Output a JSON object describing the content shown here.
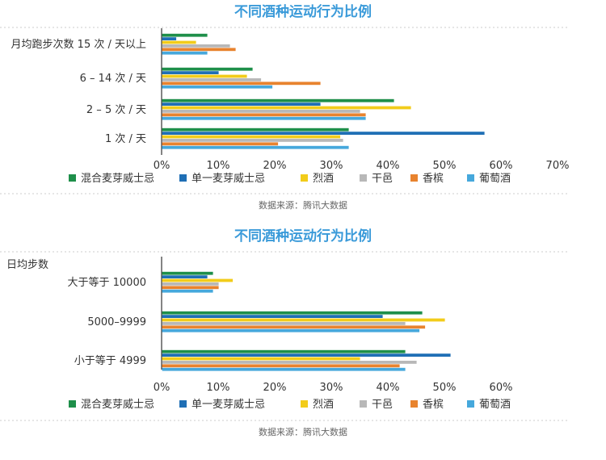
{
  "colors": [
    "#1e8f4a",
    "#1f6fb5",
    "#f2cc1a",
    "#b8b8b8",
    "#e8832e",
    "#46a8dc"
  ],
  "chart_data": [
    {
      "type": "bar",
      "orientation": "horizontal",
      "title": "不同酒种运动行为比例",
      "ylabel": "",
      "categories": [
        "月均跑步次数 15 次 / 天以上",
        "6 – 14 次 / 天",
        "2 – 5 次 / 天",
        "1 次 / 天"
      ],
      "xlim": [
        0,
        70
      ],
      "xticks": [
        "0%",
        "10%",
        "20%",
        "30%",
        "40%",
        "50%",
        "60%",
        "70%"
      ],
      "series": [
        {
          "name": "混合麦芽威士忌",
          "values": [
            8,
            16,
            41,
            33
          ]
        },
        {
          "name": "单一麦芽威士忌",
          "values": [
            2.5,
            10,
            28,
            57
          ]
        },
        {
          "name": "烈酒",
          "values": [
            6,
            15,
            44,
            31.5
          ]
        },
        {
          "name": "干邑",
          "values": [
            12,
            17.5,
            35,
            32
          ]
        },
        {
          "name": "香槟",
          "values": [
            13,
            28,
            36,
            20.5
          ]
        },
        {
          "name": "葡萄酒",
          "values": [
            8,
            19.5,
            36,
            33
          ]
        }
      ],
      "source": "数据来源：腾讯大数据"
    },
    {
      "type": "bar",
      "orientation": "horizontal",
      "title": "不同酒种运动行为比例",
      "ylabel": "日均步数",
      "categories": [
        "大于等于 10000",
        "5000–9999",
        "小于等于 4999"
      ],
      "xlim": [
        0,
        60
      ],
      "xticks": [
        "0%",
        "10%",
        "20%",
        "30%",
        "40%",
        "50%",
        "60%"
      ],
      "series": [
        {
          "name": "混合麦芽威士忌",
          "values": [
            9,
            46,
            43
          ]
        },
        {
          "name": "单一麦芽威士忌",
          "values": [
            8,
            39,
            51
          ]
        },
        {
          "name": "烈酒",
          "values": [
            12.5,
            50,
            35
          ]
        },
        {
          "name": "干邑",
          "values": [
            10,
            43,
            45
          ]
        },
        {
          "name": "香槟",
          "values": [
            10,
            46.5,
            42
          ]
        },
        {
          "name": "葡萄酒",
          "values": [
            9,
            45.5,
            43
          ]
        }
      ],
      "source": "数据来源：腾讯大数据"
    }
  ]
}
